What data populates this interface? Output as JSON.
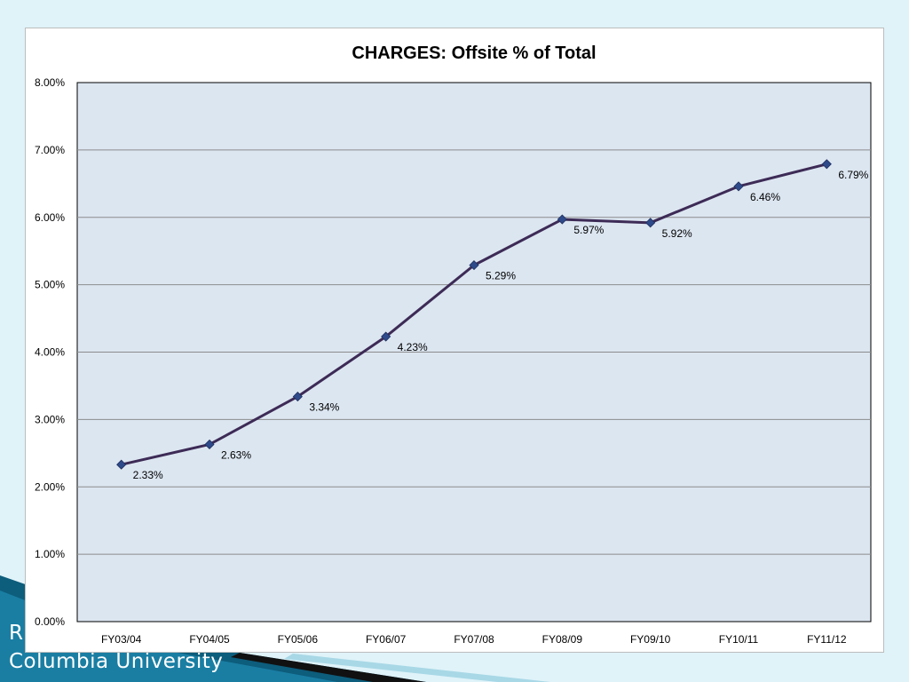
{
  "footer": {
    "line1_partial": "R",
    "line2": "Columbia University"
  },
  "colors": {
    "background": "#dff3f9",
    "plot_area": "#dce6f1",
    "line": "#3d2b56",
    "marker": "#2e4a8a",
    "gridline": "#8c8c8c",
    "accent_teal": "#1a7ea3"
  },
  "chart_data": {
    "type": "line",
    "title": "CHARGES: Offsite % of Total",
    "xlabel": "",
    "ylabel": "",
    "categories": [
      "FY03/04",
      "FY04/05",
      "FY05/06",
      "FY06/07",
      "FY07/08",
      "FY08/09",
      "FY09/10",
      "FY10/11",
      "FY11/12"
    ],
    "series": [
      {
        "values": [
          2.33,
          2.63,
          3.34,
          4.23,
          5.29,
          5.97,
          5.92,
          6.46,
          6.79
        ],
        "data_labels": [
          "2.33%",
          "2.63%",
          "3.34%",
          "4.23%",
          "5.29%",
          "5.97%",
          "5.92%",
          "6.46%",
          "6.79%"
        ]
      }
    ],
    "ylim": [
      0,
      8
    ],
    "yticks": [
      "0.00%",
      "1.00%",
      "2.00%",
      "3.00%",
      "4.00%",
      "5.00%",
      "6.00%",
      "7.00%",
      "8.00%"
    ],
    "grid": true,
    "legend": "none"
  }
}
